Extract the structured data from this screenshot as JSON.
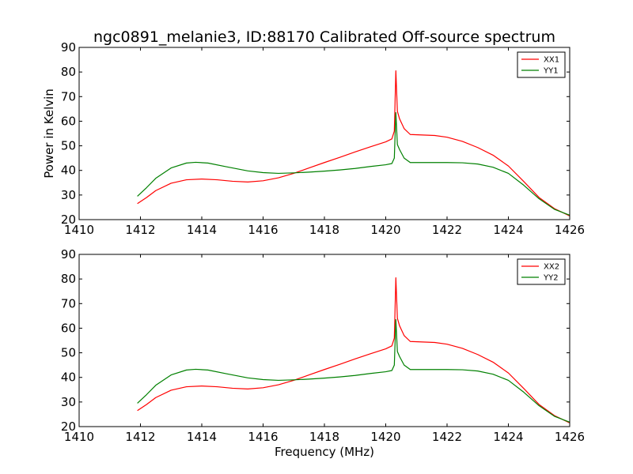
{
  "chart_data": [
    {
      "type": "line",
      "title": "ngc0891_melanie3, ID:88170 Calibrated Off-source spectrum",
      "xlabel": "",
      "ylabel": "Power in Kelvin",
      "xlim": [
        1410,
        1426
      ],
      "ylim": [
        20,
        90
      ],
      "xticks": [
        1410,
        1412,
        1414,
        1416,
        1418,
        1420,
        1422,
        1424,
        1426
      ],
      "yticks": [
        20,
        30,
        40,
        50,
        60,
        70,
        80,
        90
      ],
      "legend_position": "top-right",
      "grid": false,
      "series": [
        {
          "name": "XX1",
          "color": "#ff0000",
          "points": [
            [
              1411.9,
              26.5
            ],
            [
              1412.2,
              29
            ],
            [
              1412.5,
              31.8
            ],
            [
              1413,
              34.8
            ],
            [
              1413.5,
              36.2
            ],
            [
              1414,
              36.5
            ],
            [
              1414.5,
              36.2
            ],
            [
              1415,
              35.6
            ],
            [
              1415.5,
              35.3
            ],
            [
              1416,
              35.8
            ],
            [
              1416.5,
              37
            ],
            [
              1417,
              38.8
            ],
            [
              1417.5,
              41
            ],
            [
              1418,
              43.2
            ],
            [
              1418.5,
              45.3
            ],
            [
              1419,
              47.5
            ],
            [
              1419.5,
              49.6
            ],
            [
              1420,
              51.6
            ],
            [
              1420.2,
              52.8
            ],
            [
              1420.28,
              56
            ],
            [
              1420.33,
              80.5
            ],
            [
              1420.38,
              64
            ],
            [
              1420.45,
              61
            ],
            [
              1420.6,
              57
            ],
            [
              1420.8,
              54.6
            ],
            [
              1421.2,
              54.4
            ],
            [
              1421.6,
              54.2
            ],
            [
              1422,
              53.5
            ],
            [
              1422.5,
              51.8
            ],
            [
              1423,
              49.3
            ],
            [
              1423.5,
              46.2
            ],
            [
              1424,
              41.8
            ],
            [
              1424.5,
              35.5
            ],
            [
              1425,
              29
            ],
            [
              1425.5,
              24.5
            ],
            [
              1426,
              21.5
            ]
          ]
        },
        {
          "name": "YY1",
          "color": "#008000",
          "points": [
            [
              1411.9,
              29.5
            ],
            [
              1412.2,
              33
            ],
            [
              1412.5,
              36.8
            ],
            [
              1413,
              41
            ],
            [
              1413.5,
              43
            ],
            [
              1413.8,
              43.3
            ],
            [
              1414.2,
              43
            ],
            [
              1414.8,
              41.5
            ],
            [
              1415.5,
              39.8
            ],
            [
              1416,
              39.1
            ],
            [
              1416.5,
              38.8
            ],
            [
              1417,
              39
            ],
            [
              1417.5,
              39.3
            ],
            [
              1418,
              39.7
            ],
            [
              1418.5,
              40.2
            ],
            [
              1419,
              40.8
            ],
            [
              1419.5,
              41.6
            ],
            [
              1420,
              42.3
            ],
            [
              1420.2,
              42.8
            ],
            [
              1420.28,
              45
            ],
            [
              1420.33,
              63.5
            ],
            [
              1420.38,
              50.5
            ],
            [
              1420.45,
              48.5
            ],
            [
              1420.6,
              45
            ],
            [
              1420.8,
              43.2
            ],
            [
              1421.5,
              43.2
            ],
            [
              1422,
              43.2
            ],
            [
              1422.5,
              43.1
            ],
            [
              1423,
              42.6
            ],
            [
              1423.5,
              41.3
            ],
            [
              1424,
              38.8
            ],
            [
              1424.5,
              34
            ],
            [
              1425,
              28.5
            ],
            [
              1425.5,
              24.2
            ],
            [
              1426,
              21.8
            ]
          ]
        }
      ]
    },
    {
      "type": "line",
      "title": "",
      "xlabel": "Frequency (MHz)",
      "ylabel": "",
      "xlim": [
        1410,
        1426
      ],
      "ylim": [
        20,
        90
      ],
      "xticks": [
        1410,
        1412,
        1414,
        1416,
        1418,
        1420,
        1422,
        1424,
        1426
      ],
      "yticks": [
        20,
        30,
        40,
        50,
        60,
        70,
        80,
        90
      ],
      "legend_position": "top-right",
      "grid": false,
      "series": [
        {
          "name": "XX2",
          "color": "#ff0000",
          "points": [
            [
              1411.9,
              26.5
            ],
            [
              1412.2,
              29
            ],
            [
              1412.5,
              31.8
            ],
            [
              1413,
              34.8
            ],
            [
              1413.5,
              36.2
            ],
            [
              1414,
              36.5
            ],
            [
              1414.5,
              36.2
            ],
            [
              1415,
              35.6
            ],
            [
              1415.5,
              35.3
            ],
            [
              1416,
              35.8
            ],
            [
              1416.5,
              37
            ],
            [
              1417,
              38.8
            ],
            [
              1417.5,
              41
            ],
            [
              1418,
              43.2
            ],
            [
              1418.5,
              45.3
            ],
            [
              1419,
              47.5
            ],
            [
              1419.5,
              49.6
            ],
            [
              1420,
              51.6
            ],
            [
              1420.2,
              52.8
            ],
            [
              1420.28,
              56
            ],
            [
              1420.33,
              80.5
            ],
            [
              1420.38,
              64
            ],
            [
              1420.45,
              61
            ],
            [
              1420.6,
              57
            ],
            [
              1420.8,
              54.6
            ],
            [
              1421.2,
              54.4
            ],
            [
              1421.6,
              54.2
            ],
            [
              1422,
              53.5
            ],
            [
              1422.5,
              51.8
            ],
            [
              1423,
              49.3
            ],
            [
              1423.5,
              46.2
            ],
            [
              1424,
              41.8
            ],
            [
              1424.5,
              35.5
            ],
            [
              1425,
              29
            ],
            [
              1425.5,
              24.5
            ],
            [
              1426,
              21.5
            ]
          ]
        },
        {
          "name": "YY2",
          "color": "#008000",
          "points": [
            [
              1411.9,
              29.5
            ],
            [
              1412.2,
              33
            ],
            [
              1412.5,
              36.8
            ],
            [
              1413,
              41
            ],
            [
              1413.5,
              43
            ],
            [
              1413.8,
              43.3
            ],
            [
              1414.2,
              43
            ],
            [
              1414.8,
              41.5
            ],
            [
              1415.5,
              39.8
            ],
            [
              1416,
              39.1
            ],
            [
              1416.5,
              38.8
            ],
            [
              1417,
              39
            ],
            [
              1417.5,
              39.3
            ],
            [
              1418,
              39.7
            ],
            [
              1418.5,
              40.2
            ],
            [
              1419,
              40.8
            ],
            [
              1419.5,
              41.6
            ],
            [
              1420,
              42.3
            ],
            [
              1420.2,
              42.8
            ],
            [
              1420.28,
              45
            ],
            [
              1420.33,
              63.5
            ],
            [
              1420.38,
              50.5
            ],
            [
              1420.45,
              48.5
            ],
            [
              1420.6,
              45
            ],
            [
              1420.8,
              43.2
            ],
            [
              1421.5,
              43.2
            ],
            [
              1422,
              43.2
            ],
            [
              1422.5,
              43.1
            ],
            [
              1423,
              42.6
            ],
            [
              1423.5,
              41.3
            ],
            [
              1424,
              38.8
            ],
            [
              1424.5,
              34
            ],
            [
              1425,
              28.5
            ],
            [
              1425.5,
              24.2
            ],
            [
              1426,
              21.8
            ]
          ]
        }
      ]
    }
  ]
}
